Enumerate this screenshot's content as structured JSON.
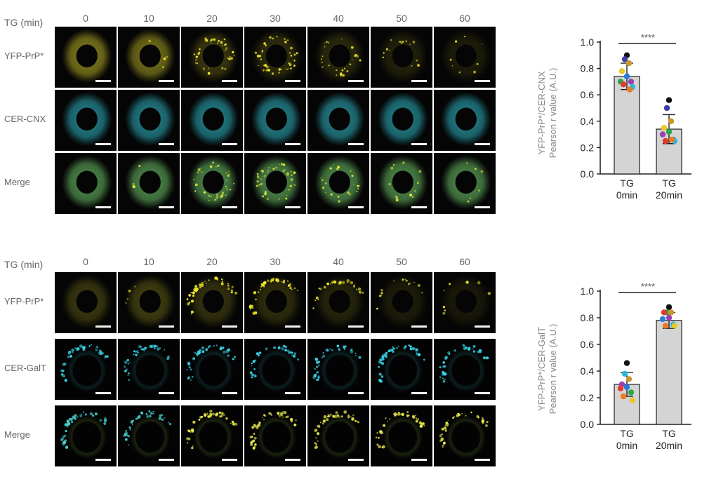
{
  "panels": [
    {
      "id": "cnx",
      "header_label": "TG (min)",
      "timepoints": [
        "0",
        "10",
        "20",
        "30",
        "40",
        "50",
        "60"
      ],
      "rows": [
        {
          "label": "YFP-PrP*",
          "channel": "yfp"
        },
        {
          "label": "CER-CNX",
          "channel": "cer"
        },
        {
          "label": "Merge",
          "channel": "merge"
        }
      ],
      "colors": {
        "yfp": "#c9c12a",
        "cer": "#2fb7c6",
        "merge": "#6fc66a"
      }
    },
    {
      "id": "galt",
      "header_label": "TG (min)",
      "timepoints": [
        "0",
        "10",
        "20",
        "30",
        "40",
        "50",
        "60"
      ],
      "rows": [
        {
          "label": "YFP-PrP*",
          "channel": "yfp"
        },
        {
          "label": "CER-GalT",
          "channel": "cer"
        },
        {
          "label": "Merge",
          "channel": "merge"
        }
      ],
      "colors": {
        "yfp": "#c9c12a",
        "cer": "#2fb7c6",
        "merge": "#8fc94a"
      }
    }
  ],
  "chart_data": [
    {
      "type": "bar",
      "title": "",
      "ylabel_line1": "YFP-PrP*/CER-CNX",
      "ylabel_line2": "Pearson r value (A.U.)",
      "categories": [
        [
          "TG",
          "0min"
        ],
        [
          "TG",
          "20min"
        ]
      ],
      "values": [
        0.74,
        0.34
      ],
      "errors": [
        0.1,
        0.11
      ],
      "ylim": [
        0.0,
        1.0
      ],
      "yticks": [
        "0.0",
        "0.2",
        "0.4",
        "0.6",
        "0.8",
        "1.0"
      ],
      "significance": "****",
      "points": [
        [
          {
            "y": 0.9,
            "c": "#111111"
          },
          {
            "y": 0.87,
            "c": "#3b3fa8"
          },
          {
            "y": 0.84,
            "c": "#c8952e"
          },
          {
            "y": 0.78,
            "c": "#e8c82a"
          },
          {
            "y": 0.74,
            "c": "#2a7ad6"
          },
          {
            "y": 0.7,
            "c": "#2ba84a"
          },
          {
            "y": 0.7,
            "c": "#9b3fb5"
          },
          {
            "y": 0.68,
            "c": "#e23a2a"
          },
          {
            "y": 0.66,
            "c": "#2ab8d6"
          },
          {
            "y": 0.64,
            "c": "#ee7a1f"
          }
        ],
        [
          {
            "y": 0.56,
            "c": "#111111"
          },
          {
            "y": 0.5,
            "c": "#3b3fa8"
          },
          {
            "y": 0.4,
            "c": "#c8952e"
          },
          {
            "y": 0.35,
            "c": "#e8c82a"
          },
          {
            "y": 0.32,
            "c": "#2ba84a"
          },
          {
            "y": 0.3,
            "c": "#9b3fb5"
          },
          {
            "y": 0.26,
            "c": "#2a7ad6"
          },
          {
            "y": 0.25,
            "c": "#e23a2a"
          },
          {
            "y": 0.25,
            "c": "#2ab8d6"
          },
          {
            "y": 0.26,
            "c": "#ee7a1f"
          }
        ]
      ]
    },
    {
      "type": "bar",
      "title": "",
      "ylabel_line1": "YFP-PrP*/CER-GalT",
      "ylabel_line2": "Pearson r value (A.U.)",
      "categories": [
        [
          "TG",
          "0min"
        ],
        [
          "TG",
          "20min"
        ]
      ],
      "values": [
        0.3,
        0.78
      ],
      "errors": [
        0.09,
        0.06
      ],
      "ylim": [
        0.0,
        1.0
      ],
      "yticks": [
        "0.0",
        "0.2",
        "0.4",
        "0.6",
        "0.8",
        "1.0"
      ],
      "significance": "****",
      "points": [
        [
          {
            "y": 0.46,
            "c": "#111111"
          },
          {
            "y": 0.38,
            "c": "#2ab8d6"
          },
          {
            "y": 0.34,
            "c": "#c8952e"
          },
          {
            "y": 0.3,
            "c": "#9b3fb5"
          },
          {
            "y": 0.28,
            "c": "#2a7ad6"
          },
          {
            "y": 0.27,
            "c": "#e23a2a"
          },
          {
            "y": 0.24,
            "c": "#2ba84a"
          },
          {
            "y": 0.21,
            "c": "#ee7a1f"
          },
          {
            "y": 0.18,
            "c": "#e8c82a"
          }
        ],
        [
          {
            "y": 0.88,
            "c": "#111111"
          },
          {
            "y": 0.84,
            "c": "#2ba84a"
          },
          {
            "y": 0.84,
            "c": "#c8952e"
          },
          {
            "y": 0.84,
            "c": "#e23a2a"
          },
          {
            "y": 0.8,
            "c": "#9b3fb5"
          },
          {
            "y": 0.79,
            "c": "#2a7ad6"
          },
          {
            "y": 0.75,
            "c": "#2ab8d6"
          },
          {
            "y": 0.74,
            "c": "#ee7a1f"
          },
          {
            "y": 0.74,
            "c": "#e8c82a"
          }
        ]
      ]
    }
  ]
}
